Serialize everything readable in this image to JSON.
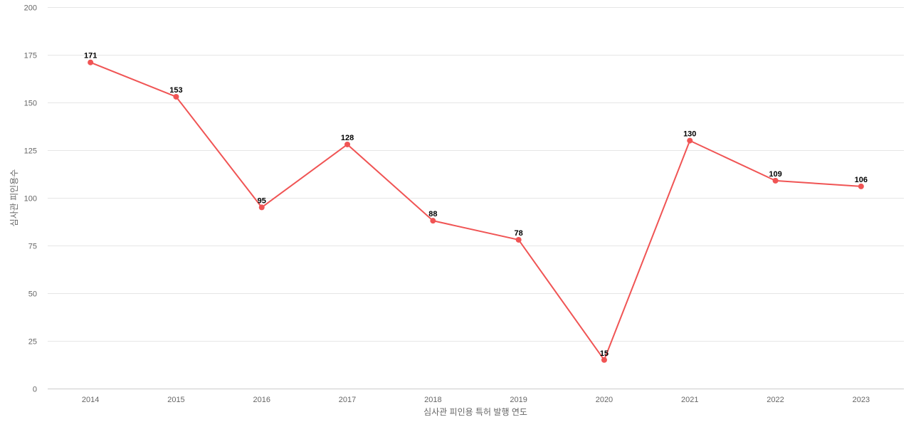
{
  "chart_data": {
    "type": "line",
    "title": "",
    "xlabel": "심사관 피인용 특허 발행 연도",
    "ylabel": "심사관 피인용수",
    "categories": [
      "2014",
      "2015",
      "2016",
      "2017",
      "2018",
      "2019",
      "2020",
      "2021",
      "2022",
      "2023"
    ],
    "series": [
      {
        "name": "심사관 피인용수",
        "values": [
          171,
          153,
          95,
          128,
          88,
          78,
          15,
          130,
          109,
          106
        ],
        "color": "#f05454"
      }
    ],
    "ylim": [
      0,
      200
    ],
    "yticks": [
      0,
      25,
      50,
      75,
      100,
      125,
      150,
      175,
      200
    ],
    "grid": true,
    "legend": "none",
    "data_labels": true
  }
}
